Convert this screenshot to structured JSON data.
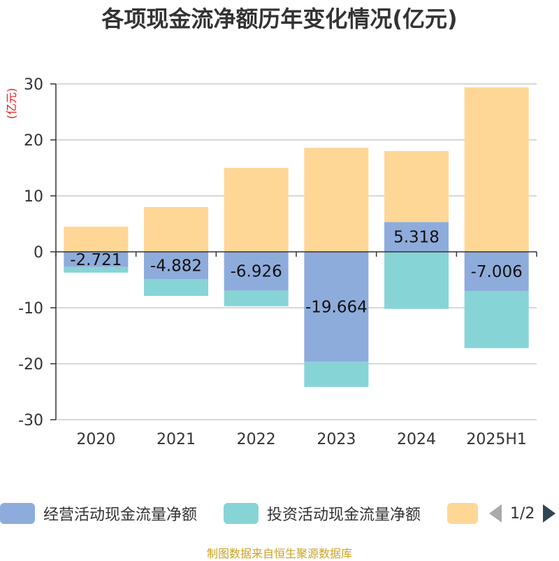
{
  "title": "各项现金流净额历年变化情况(亿元)",
  "source": "制图数据来自恒生聚源数据库",
  "chart_data": {
    "type": "bar",
    "stacked": true,
    "unit": "(亿元)",
    "categories": [
      "2020",
      "2021",
      "2022",
      "2023",
      "2024",
      "2025H1"
    ],
    "ylim": [
      -30,
      30
    ],
    "yticks": [
      30,
      20,
      10,
      0,
      -10,
      -20,
      -30
    ],
    "grid": true,
    "legend_position": "bottom",
    "series": [
      {
        "name": "经营活动现金流量净额",
        "color": "#8eacdb",
        "values": [
          -2.721,
          -4.882,
          -6.926,
          -19.664,
          5.318,
          -7.006
        ],
        "labels": [
          "-2.721",
          "-4.882",
          "-6.926",
          "-19.664",
          "5.318",
          "-7.006"
        ]
      },
      {
        "name": "投资活动现金流量净额",
        "color": "#87d4d6",
        "values": [
          -1.0,
          -3.0,
          -2.8,
          -4.5,
          -10.2,
          -10.2
        ]
      },
      {
        "name": "",
        "color": "#fed797",
        "values": [
          4.5,
          8.0,
          15.0,
          18.6,
          12.7,
          29.4
        ]
      }
    ]
  },
  "pager": {
    "text": "1/2"
  }
}
